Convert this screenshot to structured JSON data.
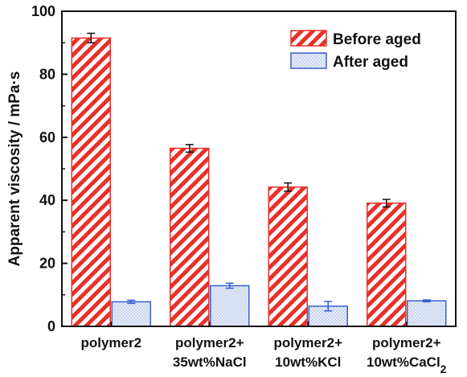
{
  "chart_data": {
    "type": "bar",
    "title": "",
    "xlabel": "",
    "ylabel": "Apparent viscosity / mPa·s",
    "ylim": [
      0,
      100
    ],
    "yticks": [
      0,
      20,
      40,
      60,
      80,
      100
    ],
    "grid": false,
    "legend_position": "top-right",
    "categories": [
      {
        "line1": "polymer2",
        "line2": ""
      },
      {
        "line1": "polymer2+",
        "line2": "35wt%NaCl"
      },
      {
        "line1": "polymer2+",
        "line2": "10wt%KCl"
      },
      {
        "line1": "polymer2+",
        "line2": "10wt%CaCl",
        "sub": "2"
      }
    ],
    "series": [
      {
        "name": "Before aged",
        "values": [
          91.5,
          56.5,
          44.2,
          39.1
        ],
        "errors": [
          1.5,
          1.2,
          1.3,
          1.2
        ],
        "color": "#e8302a",
        "fill": "#ffffff",
        "pattern": "diagonal-stripes"
      },
      {
        "name": "After aged",
        "values": [
          7.8,
          12.9,
          6.4,
          8.1
        ],
        "errors": [
          0.5,
          0.8,
          1.5,
          0.3
        ],
        "color": "#3a5fcd",
        "fill": "#dfe6f6",
        "pattern": "dots"
      }
    ]
  }
}
